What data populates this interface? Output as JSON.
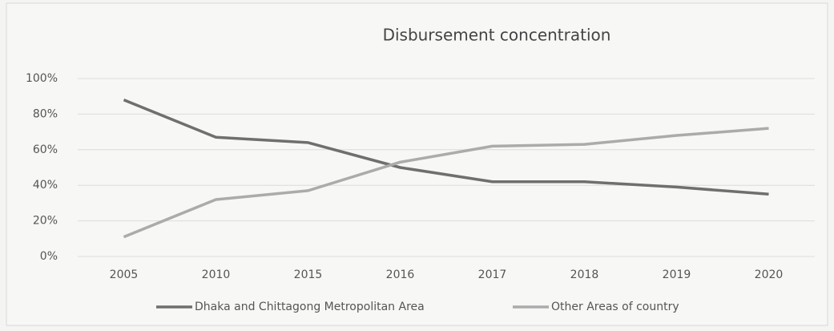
{
  "chart_data": {
    "type": "line",
    "title": "Disbursement concentration",
    "categories": [
      "2005",
      "2010",
      "2015",
      "2016",
      "2017",
      "2018",
      "2019",
      "2020"
    ],
    "series": [
      {
        "name": "Dhaka and Chittagong Metropolitan Area",
        "color": "#6f6f6f",
        "values": [
          88,
          67,
          64,
          50,
          42,
          42,
          39,
          35
        ]
      },
      {
        "name": "Other Areas of country",
        "color": "#ababab",
        "values": [
          11,
          32,
          37,
          53,
          62,
          63,
          68,
          72
        ]
      }
    ],
    "ylim": [
      0,
      100
    ],
    "yticks": [
      {
        "value": 0,
        "label": "0%"
      },
      {
        "value": 20,
        "label": "20%"
      },
      {
        "value": 40,
        "label": "40%"
      },
      {
        "value": 60,
        "label": "60%"
      },
      {
        "value": 80,
        "label": "80%"
      },
      {
        "value": 100,
        "label": "100%"
      }
    ],
    "grid": true,
    "legend": "bottom"
  }
}
